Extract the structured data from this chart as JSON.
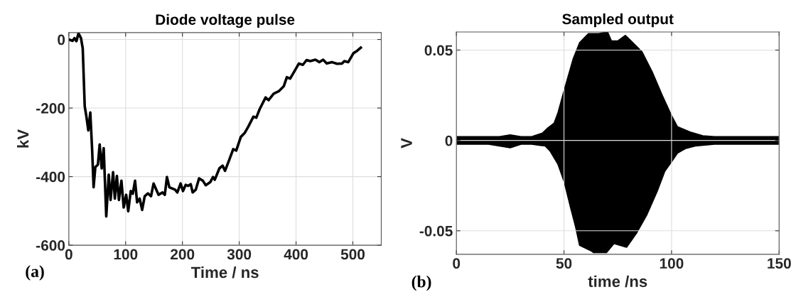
{
  "chart_data": [
    {
      "type": "line",
      "title": "Diode voltage pulse",
      "xlabel": "Time / ns",
      "ylabel": "kV",
      "annotations": [
        "(a)"
      ],
      "grid": true,
      "xlim": [
        0,
        550
      ],
      "ylim": [
        -600,
        20
      ],
      "xticks": [
        0,
        100,
        200,
        300,
        400,
        500
      ],
      "yticks": [
        -600,
        -400,
        -200,
        0
      ],
      "series": [
        {
          "color": "#000000",
          "x": [
            0,
            6.7,
            10,
            13.4,
            17,
            21.4,
            24.5,
            28,
            31,
            34.3,
            37.8,
            41,
            43.6,
            46.7,
            51.2,
            54.3,
            57.9,
            61.4,
            65.9,
            70.3,
            73.5,
            77.9,
            81,
            84.6,
            88.2,
            92.6,
            96.6,
            101,
            104.6,
            109,
            112.6,
            116.6,
            120.2,
            124.7,
            129.1,
            133.6,
            139.4,
            144.7,
            149.2,
            158,
            165,
            169,
            172.7,
            177,
            187,
            191,
            196.8,
            201,
            205.7,
            210,
            214.6,
            218,
            223.5,
            229.3,
            236,
            241,
            249,
            253.8,
            257,
            265,
            270.7,
            275,
            282.7,
            289.4,
            294.7,
            302.8,
            309.4,
            316,
            325,
            330,
            336,
            346.4,
            351.7,
            360.6,
            369.5,
            378.5,
            383.8,
            389.6,
            396,
            405,
            412,
            418.5,
            425,
            434,
            441,
            447.6,
            454,
            463,
            472,
            481,
            485,
            492,
            501,
            507.6,
            514
          ],
          "values": [
            0,
            -4,
            4,
            -5,
            18,
            4,
            -26,
            -195,
            -225,
            -265,
            -213,
            -320,
            -431,
            -372,
            -365,
            -306,
            -376,
            -317,
            -516,
            -394,
            -468,
            -387,
            -464,
            -398,
            -468,
            -412,
            -490,
            -453,
            -501,
            -442,
            -450,
            -412,
            -475,
            -464,
            -497,
            -457,
            -449,
            -457,
            -420,
            -453,
            -446,
            -453,
            -401,
            -431,
            -438,
            -446,
            -420,
            -442,
            -424,
            -427,
            -422,
            -446,
            -438,
            -405,
            -412,
            -425,
            -416,
            -401,
            -409,
            -376,
            -368,
            -383,
            -350,
            -320,
            -324,
            -284,
            -273,
            -254,
            -225,
            -228,
            -203,
            -169,
            -177,
            -158,
            -151,
            -136,
            -110,
            -114,
            -96,
            -70,
            -74,
            -60,
            -63,
            -59,
            -66,
            -59,
            -70,
            -66,
            -71,
            -70,
            -63,
            -66,
            -40,
            -33,
            -24
          ]
        }
      ]
    },
    {
      "type": "area",
      "title": "Sampled output",
      "xlabel": "time /ns",
      "ylabel": "V",
      "annotations": [
        "(b)"
      ],
      "grid": true,
      "xlim": [
        0,
        150
      ],
      "ylim": [
        -0.063,
        0.06
      ],
      "xticks": [
        0,
        50,
        100,
        150
      ],
      "yticks": [
        -0.05,
        0,
        0.05
      ],
      "series": [
        {
          "color": "#000000",
          "x": [
            0,
            5,
            10,
            15,
            20,
            25,
            30,
            35,
            40,
            42.5,
            45.5,
            47.2,
            50.2,
            54.3,
            57.3,
            61.4,
            66.1,
            70.2,
            72,
            75,
            78.5,
            80.3,
            86.2,
            90.9,
            95.6,
            99.8,
            102.7,
            108.6,
            114.5,
            120,
            130,
            140,
            150
          ],
          "values": [
            0.002,
            0.002,
            0.002,
            0.002,
            0.002,
            0.003,
            0.002,
            0.002,
            0.004,
            0.0068,
            0.0096,
            0.015,
            0.028,
            0.045,
            0.054,
            0.059,
            0.059,
            0.06,
            0.055,
            0.055,
            0.058,
            0.056,
            0.049,
            0.038,
            0.025,
            0.014,
            0.0075,
            0.0046,
            0.0025,
            0.002,
            0.002,
            0.002,
            0.002
          ]
        },
        {
          "color": "#000000",
          "x": [
            0,
            5,
            10,
            15,
            20,
            25,
            30,
            35,
            41.3,
            43.7,
            47.2,
            50.2,
            53.1,
            55.5,
            57.3,
            62.6,
            63.8,
            69.7,
            73.2,
            79.1,
            83.8,
            88.5,
            93.3,
            96.8,
            99.8,
            102.7,
            106.3,
            111,
            120,
            130,
            140,
            150
          ],
          "values": [
            -0.002,
            -0.002,
            -0.002,
            -0.002,
            -0.003,
            -0.004,
            -0.002,
            -0.002,
            -0.003,
            -0.006,
            -0.013,
            -0.023,
            -0.037,
            -0.048,
            -0.058,
            -0.061,
            -0.062,
            -0.062,
            -0.057,
            -0.059,
            -0.051,
            -0.041,
            -0.028,
            -0.017,
            -0.012,
            -0.007,
            -0.0045,
            -0.003,
            -0.002,
            -0.002,
            -0.002,
            -0.002
          ]
        }
      ]
    }
  ]
}
